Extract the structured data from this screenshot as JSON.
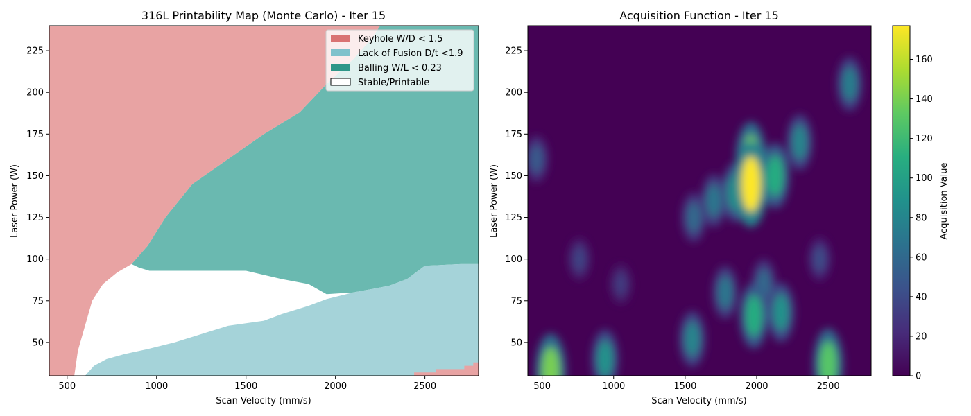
{
  "chart_data": [
    {
      "type": "heatmap",
      "title": "316L Printability Map (Monte Carlo) - Iter 15",
      "xlabel": "Scan Velocity (mm/s)",
      "ylabel": "Laser Power (W)",
      "xlim": [
        400,
        2800
      ],
      "ylim": [
        30,
        240
      ],
      "xticks": [
        500,
        1000,
        1500,
        2000,
        2500
      ],
      "yticks": [
        50,
        75,
        100,
        125,
        150,
        175,
        200,
        225
      ],
      "legend_position": "upper right",
      "series": [
        {
          "name": "Keyhole W/D < 1.5",
          "color": "#e07b7b",
          "fill": "#e8a3a3",
          "swatch": "#d97373"
        },
        {
          "name": "Lack of Fusion D/t <1.9",
          "color": "#7dc3cc",
          "fill": "#a5d3d9",
          "swatch": "#7fc2cc"
        },
        {
          "name": "Balling W/L < 0.23",
          "color": "#2a9d8f",
          "fill": "#6ab9b0",
          "swatch": "#2f9688"
        },
        {
          "name": "Stable/Printable",
          "color": "#ffffff",
          "fill": "#ffffff",
          "swatch": "#ffffff"
        }
      ],
      "regions": {
        "keyhole_boundary": [
          [
            540,
            30
          ],
          [
            560,
            45
          ],
          [
            600,
            60
          ],
          [
            640,
            75
          ],
          [
            700,
            85
          ],
          [
            780,
            92
          ],
          [
            860,
            97
          ],
          [
            950,
            108
          ],
          [
            1050,
            125
          ],
          [
            1200,
            145
          ],
          [
            1400,
            160
          ],
          [
            1600,
            175
          ],
          [
            1800,
            188
          ],
          [
            1950,
            205
          ],
          [
            2100,
            220
          ],
          [
            2200,
            232
          ],
          [
            2250,
            240
          ]
        ],
        "keyhole_corner": [
          [
            2440,
            30
          ],
          [
            2440,
            32
          ],
          [
            2560,
            32
          ],
          [
            2560,
            34
          ],
          [
            2720,
            34
          ],
          [
            2720,
            36
          ],
          [
            2770,
            36
          ],
          [
            2770,
            38
          ],
          [
            2800,
            38
          ],
          [
            2800,
            30
          ]
        ],
        "balling_upper_bound": [
          [
            2570,
            240
          ],
          [
            2800,
            240
          ]
        ],
        "balling_lower_boundary": [
          [
            900,
            95
          ],
          [
            960,
            93
          ],
          [
            1500,
            93
          ],
          [
            1700,
            88
          ],
          [
            1850,
            85
          ],
          [
            1950,
            79
          ],
          [
            2100,
            80
          ],
          [
            2200,
            82
          ],
          [
            2300,
            84
          ],
          [
            2400,
            88
          ],
          [
            2450,
            92
          ],
          [
            2500,
            96
          ],
          [
            2700,
            97
          ],
          [
            2800,
            97
          ]
        ],
        "lof_upper_boundary": [
          [
            600,
            30
          ],
          [
            650,
            36
          ],
          [
            720,
            40
          ],
          [
            820,
            43
          ],
          [
            950,
            46
          ],
          [
            1100,
            50
          ],
          [
            1250,
            55
          ],
          [
            1400,
            60
          ],
          [
            1600,
            63
          ],
          [
            1700,
            67
          ],
          [
            1850,
            72
          ],
          [
            1950,
            76
          ],
          [
            2100,
            80
          ],
          [
            2200,
            82
          ],
          [
            2300,
            84
          ],
          [
            2400,
            88
          ],
          [
            2450,
            92
          ],
          [
            2500,
            96
          ],
          [
            2700,
            97
          ],
          [
            2800,
            97
          ]
        ]
      }
    },
    {
      "type": "heatmap",
      "title": "Acquisition Function - Iter 15",
      "xlabel": "Scan Velocity (mm/s)",
      "ylabel": "Laser Power (W)",
      "xlim": [
        400,
        2800
      ],
      "ylim": [
        30,
        240
      ],
      "xticks": [
        500,
        1000,
        1500,
        2000,
        2500
      ],
      "yticks": [
        50,
        75,
        100,
        125,
        150,
        175,
        200,
        225
      ],
      "colorbar": {
        "label": "Acquisition Value",
        "range": [
          0,
          177
        ],
        "ticks": [
          0,
          20,
          40,
          60,
          80,
          100,
          120,
          140,
          160
        ],
        "colormap": "viridis"
      },
      "hotspots": [
        {
          "x": 1960,
          "y": 145,
          "value": 177
        },
        {
          "x": 1960,
          "y": 160,
          "value": 140
        },
        {
          "x": 2130,
          "y": 150,
          "value": 110
        },
        {
          "x": 2300,
          "y": 170,
          "value": 80
        },
        {
          "x": 2650,
          "y": 205,
          "value": 75
        },
        {
          "x": 1850,
          "y": 140,
          "value": 90
        },
        {
          "x": 1700,
          "y": 135,
          "value": 70
        },
        {
          "x": 1560,
          "y": 125,
          "value": 60
        },
        {
          "x": 1980,
          "y": 66,
          "value": 110
        },
        {
          "x": 2170,
          "y": 68,
          "value": 90
        },
        {
          "x": 2500,
          "y": 37,
          "value": 130
        },
        {
          "x": 560,
          "y": 33,
          "value": 140
        },
        {
          "x": 940,
          "y": 40,
          "value": 90
        },
        {
          "x": 1550,
          "y": 52,
          "value": 80
        },
        {
          "x": 1780,
          "y": 80,
          "value": 70
        },
        {
          "x": 2050,
          "y": 85,
          "value": 60
        },
        {
          "x": 2440,
          "y": 100,
          "value": 40
        },
        {
          "x": 460,
          "y": 160,
          "value": 50
        },
        {
          "x": 760,
          "y": 100,
          "value": 35
        },
        {
          "x": 1050,
          "y": 85,
          "value": 30
        }
      ]
    }
  ]
}
